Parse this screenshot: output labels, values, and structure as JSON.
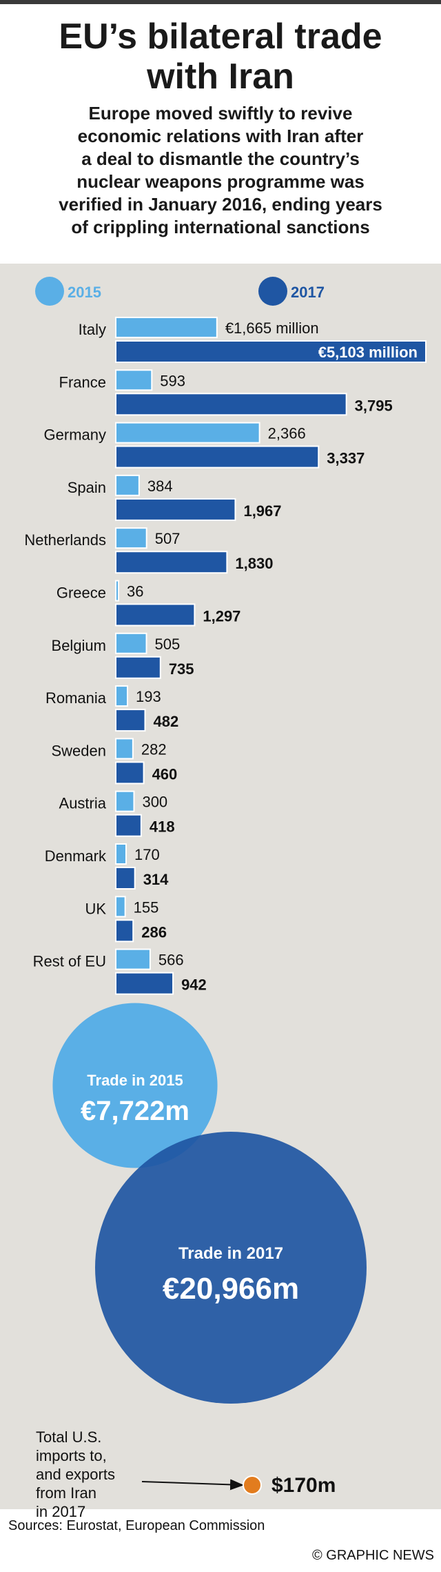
{
  "header": {
    "title_lines": [
      "EU’s bilateral trade",
      "with Iran"
    ],
    "subtitle_lines": [
      "Europe moved swiftly to revive",
      "economic relations with Iran after",
      "a deal to dismantle the country’s",
      "nuclear weapons programme was",
      "verified in January 2016, ending years",
      "of crippling international sanctions"
    ]
  },
  "colors": {
    "light_blue": "#5aafe6",
    "dark_blue": "#1f56a3",
    "orange": "#e27c1e",
    "panel": "#e2e0db"
  },
  "chart_data": [
    {
      "type": "bar",
      "orientation": "horizontal",
      "legend": [
        "2015",
        "2017"
      ],
      "categories": [
        "Italy",
        "France",
        "Germany",
        "Spain",
        "Netherlands",
        "Greece",
        "Belgium",
        "Romania",
        "Sweden",
        "Austria",
        "Denmark",
        "UK",
        "Rest of EU"
      ],
      "series": [
        {
          "name": "2015",
          "values": [
            1665,
            593,
            2366,
            384,
            507,
            36,
            505,
            193,
            282,
            300,
            170,
            155,
            566
          ],
          "labels": [
            "€1,665 million",
            "593",
            "2,366",
            "384",
            "507",
            "36",
            "505",
            "193",
            "282",
            "300",
            "170",
            "155",
            "566"
          ]
        },
        {
          "name": "2017",
          "values": [
            5103,
            3795,
            3337,
            1967,
            1830,
            1297,
            735,
            482,
            460,
            418,
            314,
            286,
            942
          ],
          "labels": [
            "€5,103 million",
            "3,795",
            "3,337",
            "1,967",
            "1,830",
            "1,297",
            "735",
            "482",
            "460",
            "418",
            "314",
            "286",
            "942"
          ]
        }
      ],
      "unit": "€ million"
    },
    {
      "type": "bubble",
      "items": [
        {
          "label": "Trade in 2015",
          "value_text": "€7,722m",
          "value": 7722
        },
        {
          "label": "Trade in 2017",
          "value_text": "€20,966m",
          "value": 20966
        }
      ]
    }
  ],
  "us_note": {
    "lines": [
      "Total U.S.",
      "imports to,",
      "and exports",
      "from Iran",
      "in 2017"
    ],
    "value_text": "$170m",
    "value": 170
  },
  "footer": {
    "sources": "Sources: Eurostat, European Commission",
    "credit": "© GRAPHIC NEWS"
  }
}
